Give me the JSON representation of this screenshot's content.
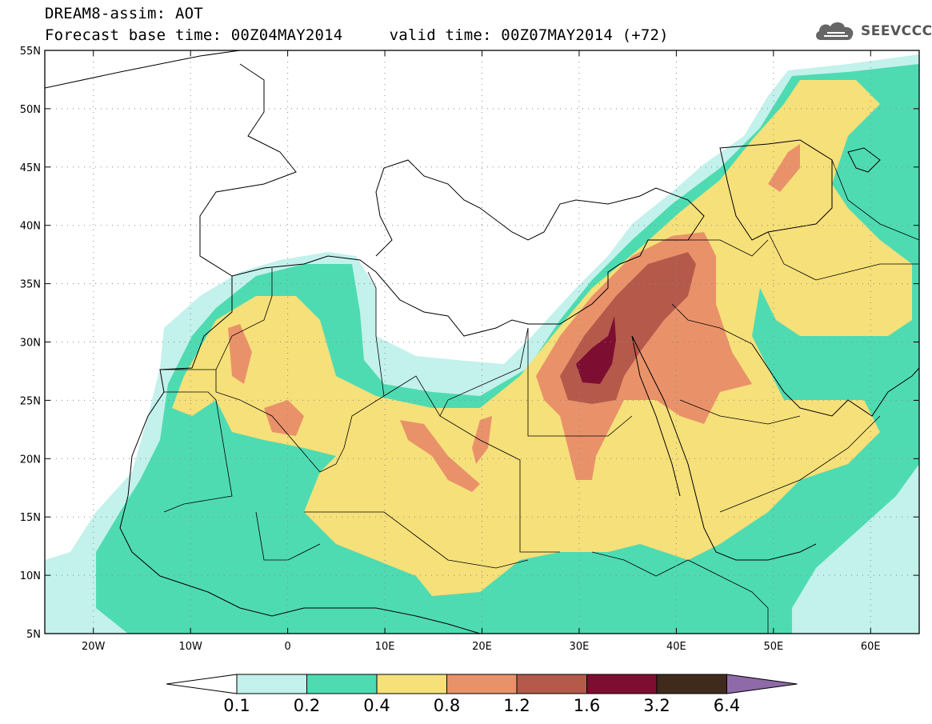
{
  "header": {
    "title": "DREAM8-assim: AOT",
    "subtitle": "Forecast base time: 00Z04MAY2014     valid time: 00Z07MAY2014 (+72)",
    "logo_text": "SEEVCCC"
  },
  "map": {
    "lon_range": [
      -25,
      65
    ],
    "lat_range": [
      5,
      55
    ],
    "lat_ticks": [
      "55N",
      "50N",
      "45N",
      "40N",
      "35N",
      "30N",
      "25N",
      "20N",
      "15N",
      "10N",
      "5N"
    ],
    "lon_ticks": [
      "20W",
      "10W",
      "0",
      "10E",
      "20E",
      "30E",
      "40E",
      "50E",
      "60E"
    ]
  },
  "colorbar": {
    "labels": [
      "0.1",
      "0.2",
      "0.4",
      "0.8",
      "1.2",
      "1.6",
      "3.2",
      "6.4"
    ],
    "colors": [
      "#c3f1ec",
      "#4fdbb1",
      "#f6e07a",
      "#e9926a",
      "#b55a4b",
      "#7d0e31",
      "#3f2a1c",
      "#8f6aa8"
    ],
    "under_color": "#ffffff"
  }
}
